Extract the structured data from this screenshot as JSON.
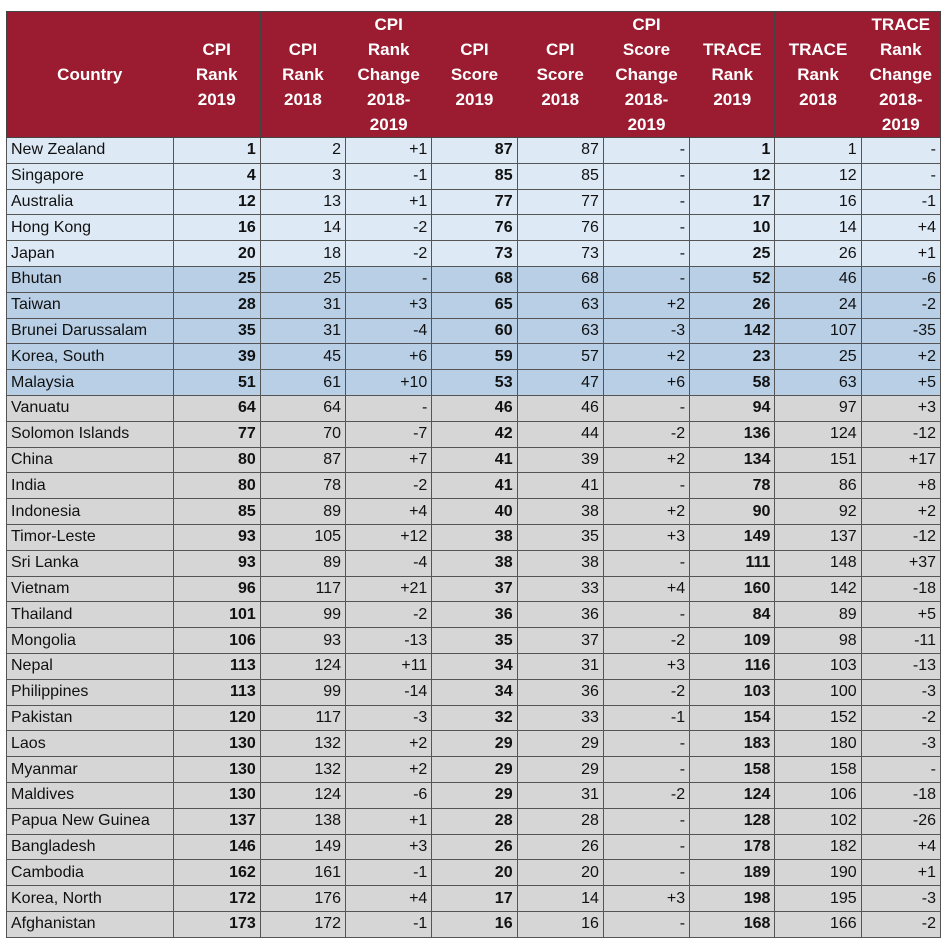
{
  "colors": {
    "header": "#9b1b30",
    "tier1": "#dde9f5",
    "tier2": "#b8cfe6",
    "tier3": "#d6d6d6"
  },
  "headers": [
    "Country",
    "CPI\nRank\n2019",
    "CPI\nRank\n2018",
    "CPI\nRank\nChange\n2018-\n2019",
    "CPI\nScore\n2019",
    "CPI\nScore\n2018",
    "CPI\nScore\nChange\n2018-\n2019",
    "TRACE\nRank\n2019",
    "TRACE\nRank\n2018",
    "TRACE\nRank\nChange\n2018-\n2019"
  ],
  "rows": [
    {
      "tier": "t1",
      "cells": [
        "New Zealand",
        "1",
        "2",
        "+1",
        "87",
        "87",
        "-",
        "1",
        "1",
        "-"
      ]
    },
    {
      "tier": "t1",
      "cells": [
        "Singapore",
        "4",
        "3",
        "-1",
        "85",
        "85",
        "-",
        "12",
        "12",
        "-"
      ]
    },
    {
      "tier": "t1",
      "cells": [
        "Australia",
        "12",
        "13",
        "+1",
        "77",
        "77",
        "-",
        "17",
        "16",
        "-1"
      ]
    },
    {
      "tier": "t1",
      "cells": [
        "Hong Kong",
        "16",
        "14",
        "-2",
        "76",
        "76",
        "-",
        "10",
        "14",
        "+4"
      ]
    },
    {
      "tier": "t1",
      "cells": [
        "Japan",
        "20",
        "18",
        "-2",
        "73",
        "73",
        "-",
        "25",
        "26",
        "+1"
      ]
    },
    {
      "tier": "t2",
      "cells": [
        "Bhutan",
        "25",
        "25",
        "-",
        "68",
        "68",
        "-",
        "52",
        "46",
        "-6"
      ]
    },
    {
      "tier": "t2",
      "cells": [
        "Taiwan",
        "28",
        "31",
        "+3",
        "65",
        "63",
        "+2",
        "26",
        "24",
        "-2"
      ]
    },
    {
      "tier": "t2",
      "cells": [
        "Brunei Darussalam",
        "35",
        "31",
        "-4",
        "60",
        "63",
        "-3",
        "142",
        "107",
        "-35"
      ]
    },
    {
      "tier": "t2",
      "cells": [
        "Korea, South",
        "39",
        "45",
        "+6",
        "59",
        "57",
        "+2",
        "23",
        "25",
        "+2"
      ]
    },
    {
      "tier": "t2",
      "cells": [
        "Malaysia",
        "51",
        "61",
        "+10",
        "53",
        "47",
        "+6",
        "58",
        "63",
        "+5"
      ]
    },
    {
      "tier": "t3",
      "cells": [
        "Vanuatu",
        "64",
        "64",
        "-",
        "46",
        "46",
        "-",
        "94",
        "97",
        "+3"
      ]
    },
    {
      "tier": "t3",
      "cells": [
        "Solomon Islands",
        "77",
        "70",
        "-7",
        "42",
        "44",
        "-2",
        "136",
        "124",
        "-12"
      ]
    },
    {
      "tier": "t3",
      "cells": [
        "China",
        "80",
        "87",
        "+7",
        "41",
        "39",
        "+2",
        "134",
        "151",
        "+17"
      ]
    },
    {
      "tier": "t3",
      "cells": [
        "India",
        "80",
        "78",
        "-2",
        "41",
        "41",
        "-",
        "78",
        "86",
        "+8"
      ]
    },
    {
      "tier": "t3",
      "cells": [
        "Indonesia",
        "85",
        "89",
        "+4",
        "40",
        "38",
        "+2",
        "90",
        "92",
        "+2"
      ]
    },
    {
      "tier": "t3",
      "cells": [
        "Timor-Leste",
        "93",
        "105",
        "+12",
        "38",
        "35",
        "+3",
        "149",
        "137",
        "-12"
      ]
    },
    {
      "tier": "t3",
      "cells": [
        "Sri Lanka",
        "93",
        "89",
        "-4",
        "38",
        "38",
        "-",
        "111",
        "148",
        "+37"
      ]
    },
    {
      "tier": "t3",
      "cells": [
        "Vietnam",
        "96",
        "117",
        "+21",
        "37",
        "33",
        "+4",
        "160",
        "142",
        "-18"
      ]
    },
    {
      "tier": "t3",
      "cells": [
        "Thailand",
        "101",
        "99",
        "-2",
        "36",
        "36",
        "-",
        "84",
        "89",
        "+5"
      ]
    },
    {
      "tier": "t3",
      "cells": [
        "Mongolia",
        "106",
        "93",
        "-13",
        "35",
        "37",
        "-2",
        "109",
        "98",
        "-11"
      ]
    },
    {
      "tier": "t3",
      "cells": [
        "Nepal",
        "113",
        "124",
        "+11",
        "34",
        "31",
        "+3",
        "116",
        "103",
        "-13"
      ]
    },
    {
      "tier": "t3",
      "cells": [
        "Philippines",
        "113",
        "99",
        "-14",
        "34",
        "36",
        "-2",
        "103",
        "100",
        "-3"
      ]
    },
    {
      "tier": "t3",
      "cells": [
        "Pakistan",
        "120",
        "117",
        "-3",
        "32",
        "33",
        "-1",
        "154",
        "152",
        "-2"
      ]
    },
    {
      "tier": "t3",
      "cells": [
        "Laos",
        "130",
        "132",
        "+2",
        "29",
        "29",
        "-",
        "183",
        "180",
        "-3"
      ]
    },
    {
      "tier": "t3",
      "cells": [
        "Myanmar",
        "130",
        "132",
        "+2",
        "29",
        "29",
        "-",
        "158",
        "158",
        "-"
      ]
    },
    {
      "tier": "t3",
      "cells": [
        "Maldives",
        "130",
        "124",
        "-6",
        "29",
        "31",
        "-2",
        "124",
        "106",
        "-18"
      ]
    },
    {
      "tier": "t3",
      "cells": [
        "Papua New Guinea",
        "137",
        "138",
        "+1",
        "28",
        "28",
        "-",
        "128",
        "102",
        "-26"
      ]
    },
    {
      "tier": "t3",
      "cells": [
        "Bangladesh",
        "146",
        "149",
        "+3",
        "26",
        "26",
        "-",
        "178",
        "182",
        "+4"
      ]
    },
    {
      "tier": "t3",
      "cells": [
        "Cambodia",
        "162",
        "161",
        "-1",
        "20",
        "20",
        "-",
        "189",
        "190",
        "+1"
      ]
    },
    {
      "tier": "t3",
      "cells": [
        "Korea, North",
        "172",
        "176",
        "+4",
        "17",
        "14",
        "+3",
        "198",
        "195",
        "-3"
      ]
    },
    {
      "tier": "t3",
      "cells": [
        "Afghanistan",
        "173",
        "172",
        "-1",
        "16",
        "16",
        "-",
        "168",
        "166",
        "-2"
      ]
    }
  ]
}
